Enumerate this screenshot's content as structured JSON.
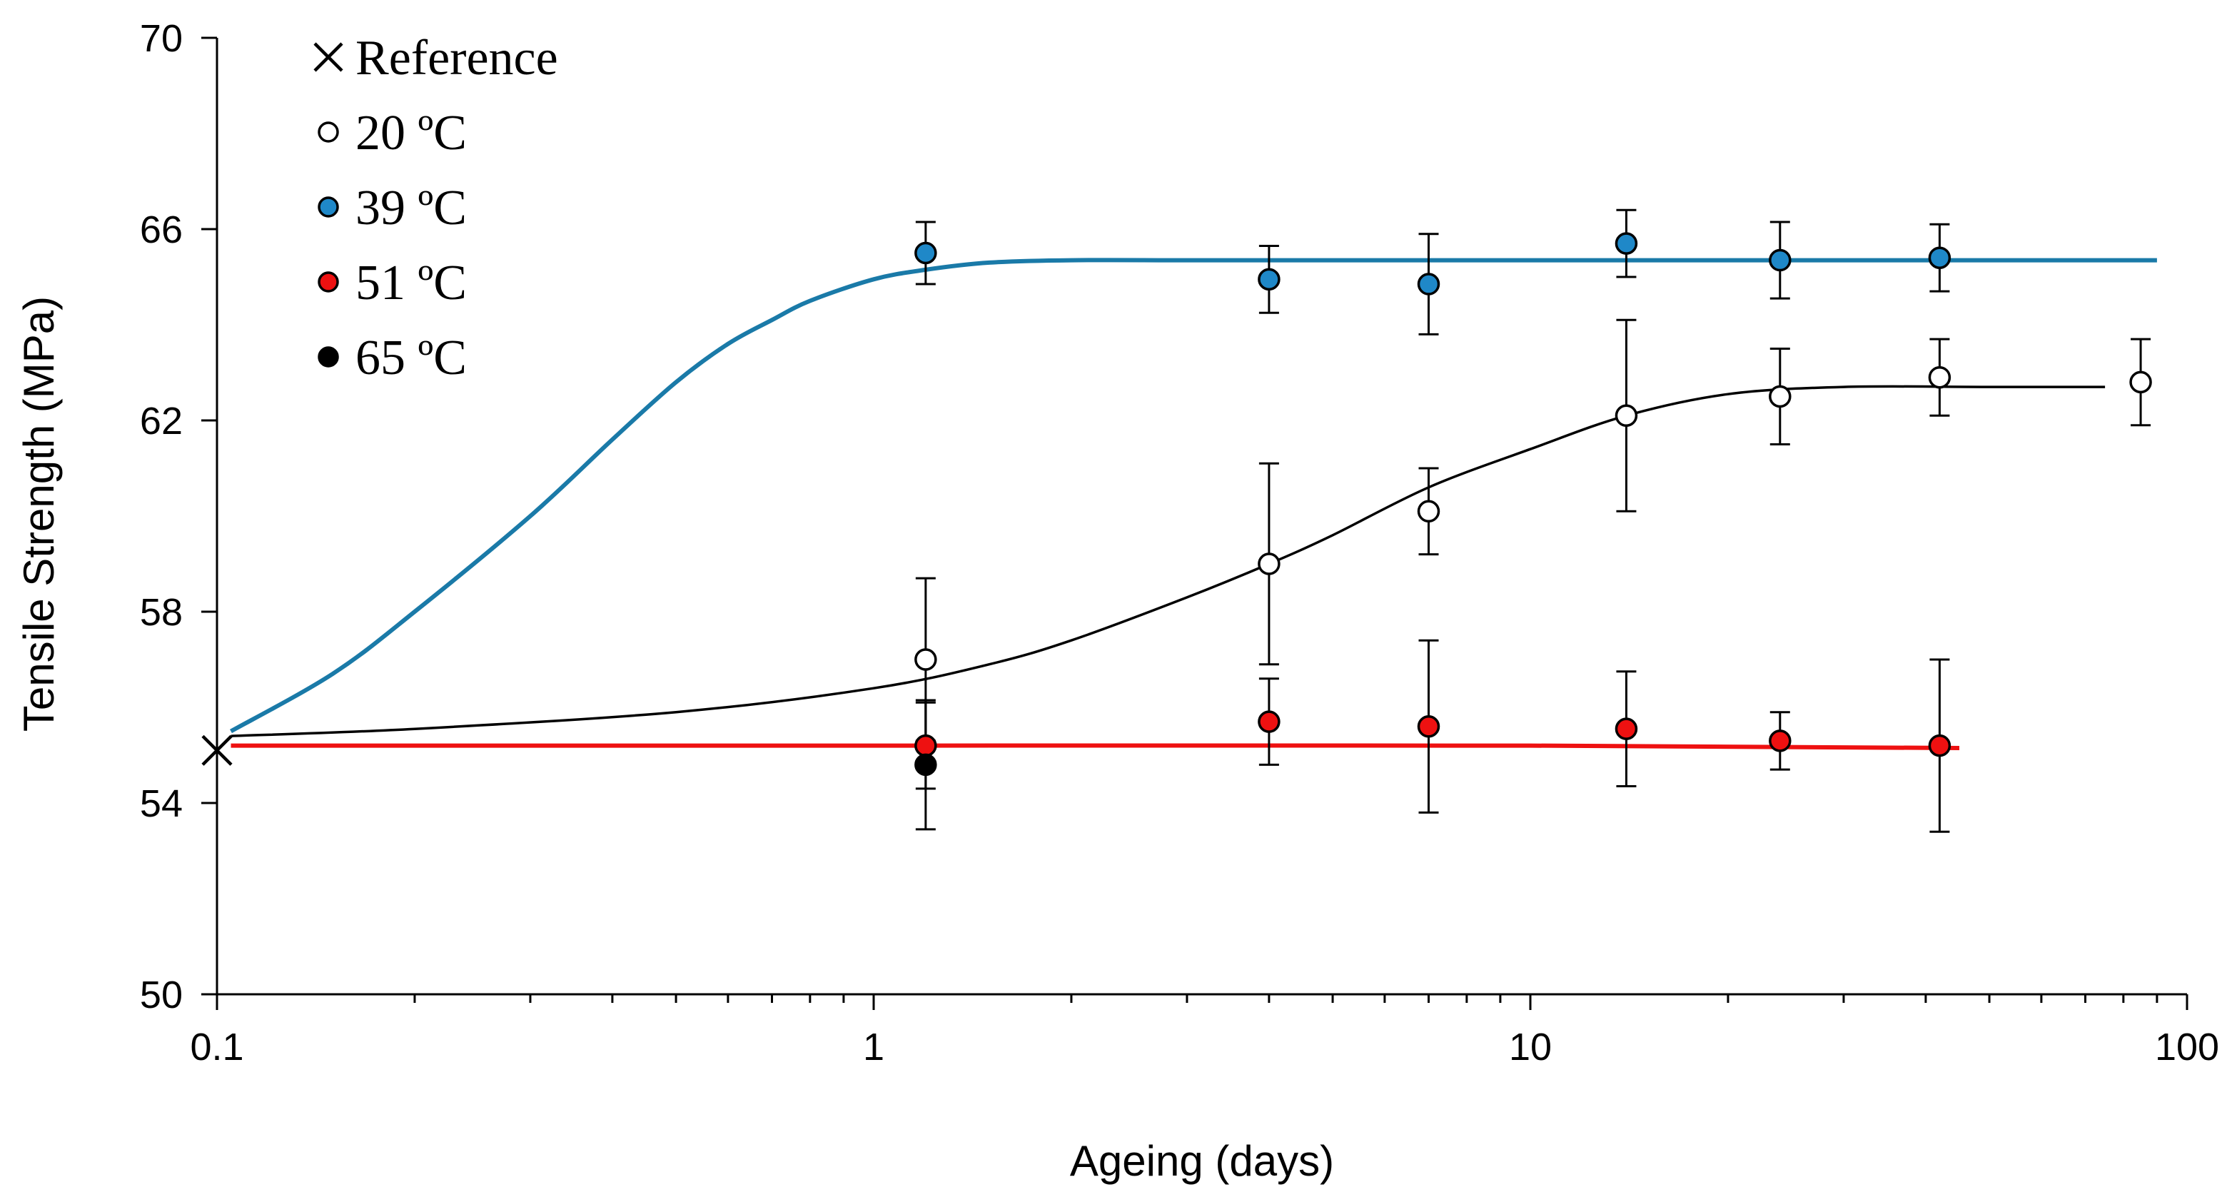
{
  "chart_data": {
    "type": "scatter",
    "title": "",
    "xlabel": "Ageing (days)",
    "ylabel": "Tensile Strength (MPa)",
    "xscale": "log",
    "xlim": [
      0.1,
      100
    ],
    "ylim": [
      50,
      70
    ],
    "xticks": [
      0.1,
      1,
      10,
      100
    ],
    "xtick_labels": [
      "0.1",
      "1",
      "10",
      "100"
    ],
    "yticks": [
      50,
      54,
      58,
      62,
      66,
      70
    ],
    "ytick_labels": [
      "50",
      "54",
      "58",
      "62",
      "66",
      "70"
    ],
    "legend_position": "top-left",
    "reference": {
      "name": "Reference",
      "marker": "x",
      "x": 0.1,
      "y": 55.1
    },
    "series": [
      {
        "name": "20 ºC",
        "marker": "open-circle",
        "color": "#ffffff",
        "line_color": "#000000",
        "x": [
          1.2,
          4,
          7,
          14,
          24,
          42,
          85
        ],
        "y": [
          57.0,
          59.0,
          60.1,
          62.1,
          62.5,
          62.9,
          62.8
        ],
        "err": [
          1.7,
          2.1,
          0.9,
          2.0,
          1.0,
          0.8,
          0.9
        ],
        "fit": {
          "x": [
            0.105,
            0.2,
            0.5,
            1,
            1.5,
            2,
            3,
            4,
            5,
            7,
            10,
            14,
            20,
            30,
            50,
            75
          ],
          "y": [
            55.4,
            55.55,
            55.9,
            56.4,
            56.9,
            57.4,
            58.3,
            59.0,
            59.6,
            60.6,
            61.4,
            62.1,
            62.55,
            62.7,
            62.7,
            62.7
          ]
        }
      },
      {
        "name": "39 ºC",
        "marker": "circle",
        "color": "#1f88c8",
        "line_color": "#1a7aa8",
        "x": [
          1.2,
          4,
          7,
          14,
          24,
          42
        ],
        "y": [
          65.5,
          64.95,
          64.85,
          65.7,
          65.35,
          65.4
        ],
        "err": [
          0.65,
          0.7,
          1.05,
          0.7,
          0.8,
          0.7
        ],
        "fit": {
          "x": [
            0.105,
            0.15,
            0.2,
            0.3,
            0.4,
            0.5,
            0.6,
            0.7,
            0.8,
            1,
            1.2,
            1.5,
            2,
            3,
            5,
            10,
            30,
            90
          ],
          "y": [
            55.5,
            56.7,
            58.0,
            60.0,
            61.6,
            62.8,
            63.6,
            64.1,
            64.5,
            64.95,
            65.15,
            65.3,
            65.35,
            65.35,
            65.35,
            65.35,
            65.35,
            65.35
          ]
        }
      },
      {
        "name": "51 ºC",
        "marker": "circle",
        "color": "#ee1111",
        "line_color": "#ee1111",
        "x": [
          1.2,
          4,
          7,
          14,
          24,
          42
        ],
        "y": [
          55.2,
          55.7,
          55.6,
          55.55,
          55.3,
          55.2
        ],
        "err": [
          0.9,
          0.9,
          1.8,
          1.2,
          0.6,
          1.8
        ],
        "fit": {
          "x": [
            0.105,
            1,
            10,
            45
          ],
          "y": [
            55.2,
            55.2,
            55.2,
            55.15
          ]
        }
      },
      {
        "name": "65 ºC",
        "marker": "circle",
        "color": "#000000",
        "line_color": "#000000",
        "x": [
          1.2
        ],
        "y": [
          54.8
        ],
        "err": [
          1.35
        ],
        "fit": null
      }
    ]
  }
}
